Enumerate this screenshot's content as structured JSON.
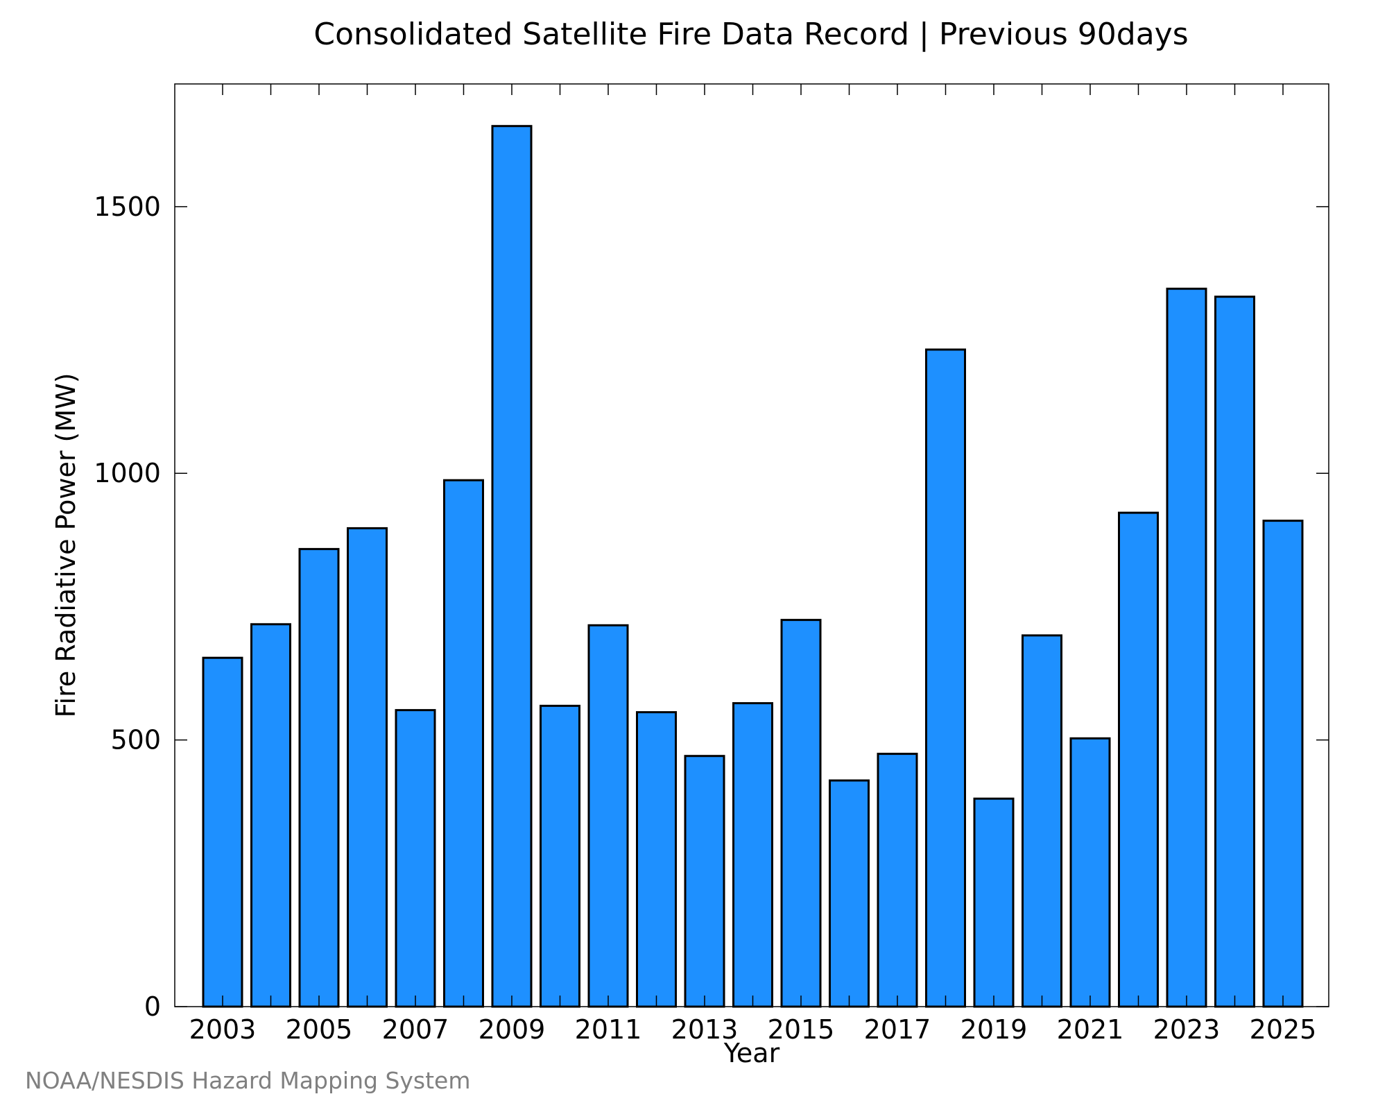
{
  "chart_data": {
    "type": "bar",
    "title": "Consolidated Satellite Fire Data Record | Previous 90days",
    "xlabel": "Year",
    "ylabel": "Fire Radiative Power (MW)",
    "categories": [
      "2003",
      "2004",
      "2005",
      "2006",
      "2007",
      "2008",
      "2009",
      "2010",
      "2011",
      "2012",
      "2013",
      "2014",
      "2015",
      "2016",
      "2017",
      "2018",
      "2019",
      "2020",
      "2021",
      "2022",
      "2023",
      "2024",
      "2025"
    ],
    "values": [
      654,
      717,
      858,
      897,
      556,
      987,
      1651,
      564,
      715,
      552,
      470,
      569,
      725,
      424,
      474,
      1232,
      390,
      696,
      503,
      926,
      1346,
      1331,
      911
    ],
    "x_tick_labels": [
      "2003",
      "2005",
      "2007",
      "2009",
      "2011",
      "2013",
      "2015",
      "2017",
      "2019",
      "2021",
      "2023",
      "2025"
    ],
    "y_ticks": [
      0,
      500,
      1000,
      1500
    ],
    "ylim": [
      0,
      1730
    ],
    "grid": false,
    "legend": "none",
    "bar_color": "#1e90ff",
    "bar_edge_color": "#000000"
  },
  "credit": "NOAA/NESDIS Hazard Mapping System"
}
